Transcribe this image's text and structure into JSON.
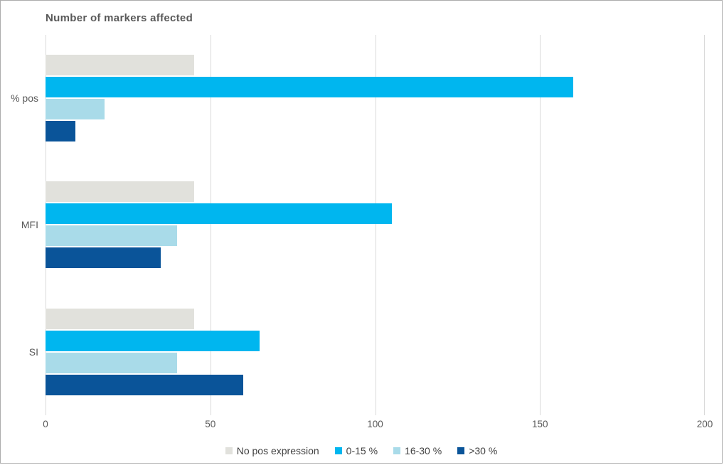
{
  "title": "Number of markers affected",
  "chart_data": {
    "type": "bar",
    "orientation": "horizontal",
    "title": "Number of markers affected",
    "categories": [
      "% pos",
      "MFI",
      "SI"
    ],
    "series": [
      {
        "name": "No pos expression",
        "color": "#E1E1DC",
        "values": [
          45,
          45,
          45
        ]
      },
      {
        "name": "0-15 %",
        "color": "#00B6EF",
        "values": [
          160,
          105,
          65
        ]
      },
      {
        "name": "16-30 %",
        "color": "#A9DBE9",
        "values": [
          18,
          40,
          40
        ]
      },
      {
        "name": ">30 %",
        "color": "#0A5499",
        "values": [
          9,
          35,
          60
        ]
      }
    ],
    "xlabel": "",
    "ylabel": "",
    "xlim": [
      0,
      200
    ],
    "x_ticks": [
      0,
      50,
      100,
      150,
      200
    ],
    "grid": "vertical-only",
    "legend_position": "bottom-center"
  },
  "colors": {
    "title_text": "#595959",
    "axis_text": "#595959",
    "legend_text": "#404040",
    "gridline": "#D9D9D9",
    "figure_border": "#ACACAC",
    "background": "#FFFFFF"
  }
}
